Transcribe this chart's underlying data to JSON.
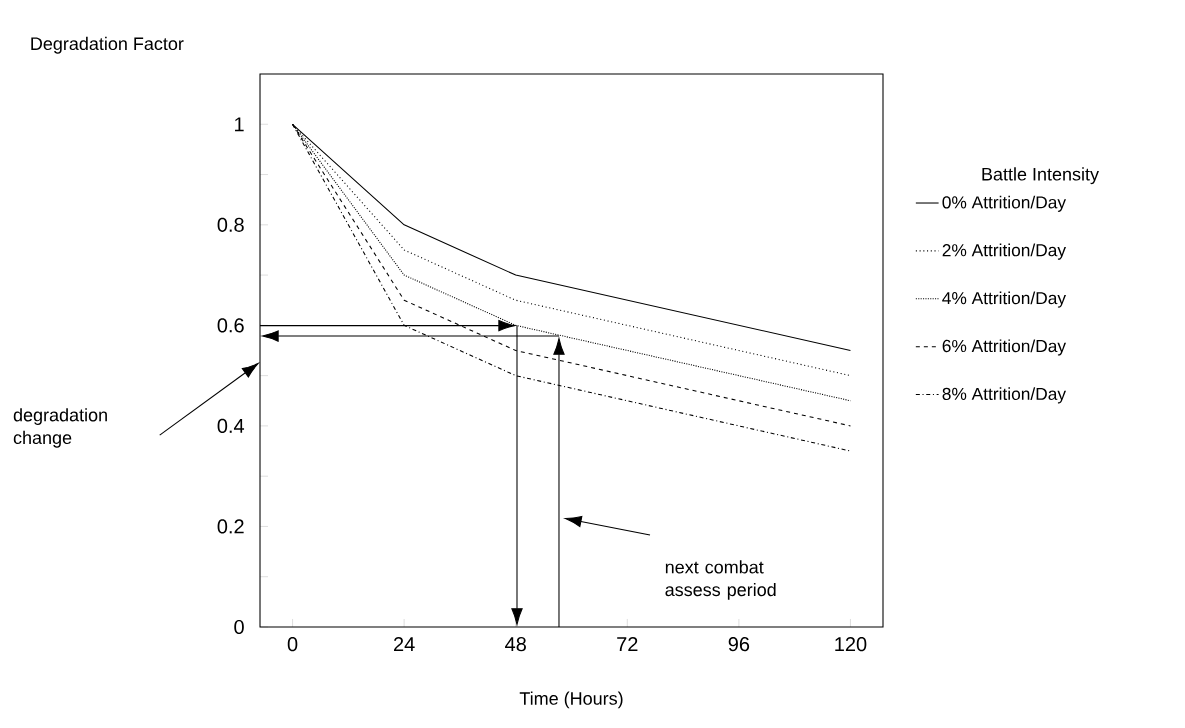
{
  "chart_data": {
    "type": "line",
    "ylabel": "Degradation Factor",
    "xlabel": "Time (Hours)",
    "legend_title": "Battle Intensity",
    "x": [
      0,
      24,
      48,
      120
    ],
    "series": [
      {
        "name": "0% Attrition/Day",
        "color": "#000000",
        "line_style": "solid",
        "values": [
          1,
          0.8,
          0.7,
          0.55
        ]
      },
      {
        "name": "2% Attrition/Day",
        "color": "#000000",
        "line_style": "dotted",
        "values": [
          1,
          0.75,
          0.65,
          0.5
        ]
      },
      {
        "name": "4% Attrition/Day",
        "color": "#000000",
        "line_style": "densely dotted",
        "values": [
          1,
          0.7,
          0.6,
          0.45
        ]
      },
      {
        "name": "6% Attrition/Day",
        "color": "#000000",
        "line_style": "dashed",
        "values": [
          1,
          0.65,
          0.55,
          0.4
        ]
      },
      {
        "name": "8% Attrition/Day",
        "color": "#000000",
        "line_style": "dashdotted",
        "values": [
          1,
          0.6,
          0.5,
          0.35
        ]
      }
    ],
    "xlim": [
      -7,
      127
    ],
    "ylim": [
      0,
      1.1
    ],
    "xticks": [
      0,
      24,
      48,
      72,
      96,
      120
    ],
    "yticks": [
      0,
      {
        "value": 0.1,
        "label": null
      },
      0.2,
      {
        "value": 0.3,
        "label": null
      },
      0.4,
      {
        "value": 0.5,
        "label": null
      },
      0.6,
      {
        "value": 0.7,
        "label": null
      },
      0.8,
      {
        "value": 0.9,
        "label": null
      },
      1
    ],
    "grid": false,
    "legend": "right",
    "marker": "none",
    "annotations": [
      "degradation change",
      "next combat assess period"
    ]
  }
}
